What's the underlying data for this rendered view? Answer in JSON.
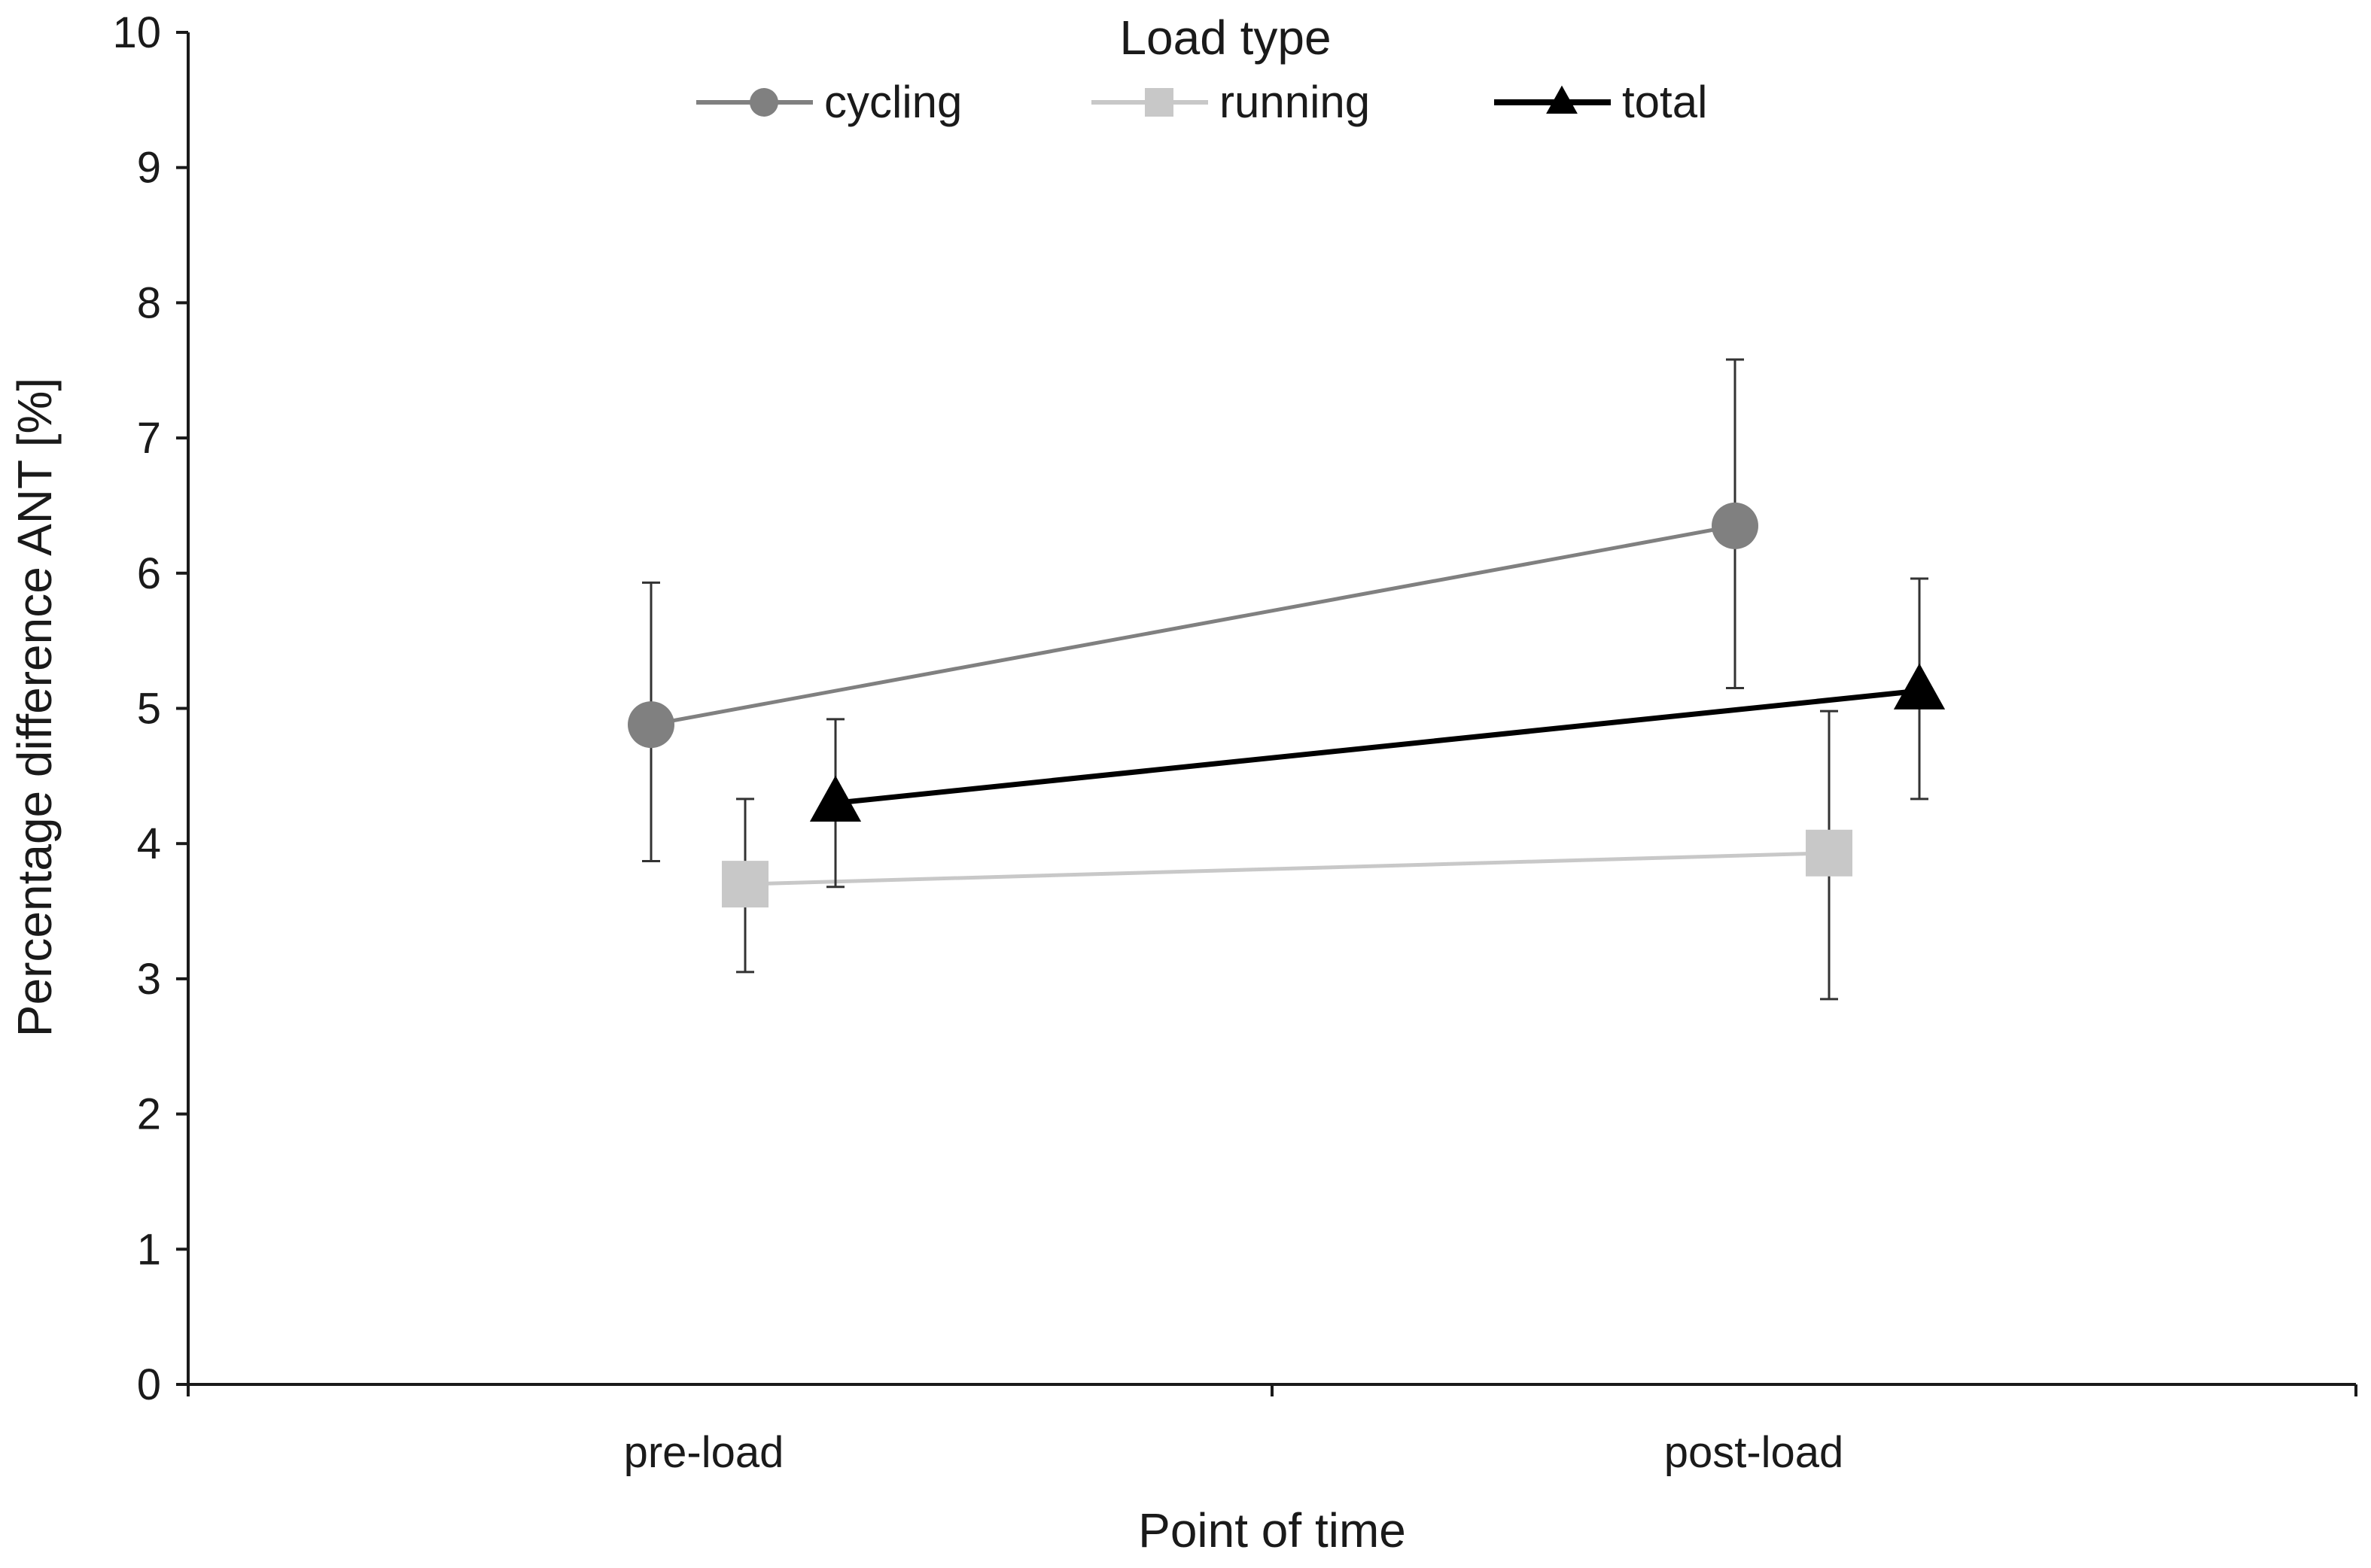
{
  "chart_data": {
    "type": "line",
    "title": "",
    "xlabel": "Point of time",
    "ylabel": "Percentage difference ANT [%]",
    "categories": [
      "pre-load",
      "post-load"
    ],
    "ylim": [
      0,
      10
    ],
    "yticks": [
      0,
      1,
      2,
      3,
      4,
      5,
      6,
      7,
      8,
      9,
      10
    ],
    "grid": false,
    "legend": {
      "title": "Load type",
      "position": "top-center"
    },
    "series": [
      {
        "name": "cycling",
        "color": "#808080",
        "marker": "circle",
        "values": [
          4.88,
          6.35
        ],
        "error_low": [
          3.87,
          5.15
        ],
        "error_high": [
          5.93,
          7.58
        ]
      },
      {
        "name": "running",
        "color": "#c8c8c8",
        "marker": "square",
        "values": [
          3.7,
          3.93
        ],
        "error_low": [
          3.05,
          2.85
        ],
        "error_high": [
          4.33,
          4.98
        ]
      },
      {
        "name": "total",
        "color": "#000000",
        "marker": "triangle",
        "values": [
          4.3,
          5.13
        ],
        "error_low": [
          3.68,
          4.33
        ],
        "error_high": [
          4.92,
          5.96
        ]
      }
    ]
  }
}
